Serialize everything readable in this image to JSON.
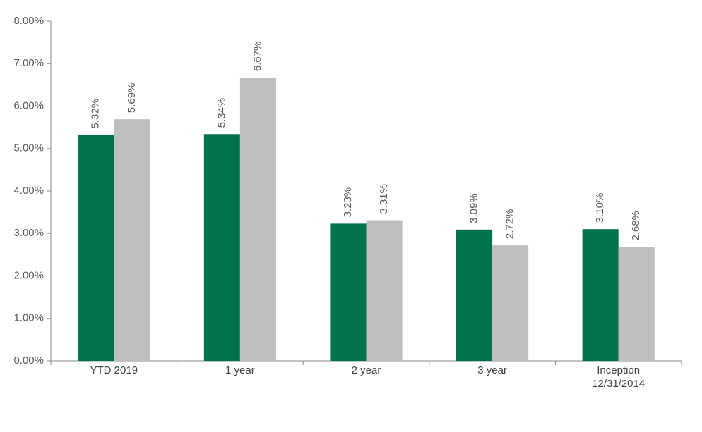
{
  "chart_data": {
    "type": "bar",
    "categories": [
      "YTD 2019",
      "1 year",
      "2 year",
      "3 year",
      "Inception\n12/31/2014"
    ],
    "series": [
      {
        "color": "#00734d",
        "values": [
          5.32,
          5.34,
          3.23,
          3.09,
          3.1
        ],
        "value_labels": [
          "5.32%",
          "5.34%",
          "3.23%",
          "3.09%",
          "3.10%"
        ]
      },
      {
        "color": "#bfbfbf",
        "values": [
          5.69,
          6.67,
          3.31,
          2.72,
          2.68
        ],
        "value_labels": [
          "5.69%",
          "6.67%",
          "3.31%",
          "2.72%",
          "2.68%"
        ]
      }
    ],
    "ylim": [
      0,
      8
    ],
    "yticks": [
      {
        "value": 0,
        "label": "0.00%"
      },
      {
        "value": 1,
        "label": "1.00%"
      },
      {
        "value": 2,
        "label": "2.00%"
      },
      {
        "value": 3,
        "label": "3.00%"
      },
      {
        "value": 4,
        "label": "4.00%"
      },
      {
        "value": 5,
        "label": "5.00%"
      },
      {
        "value": 6,
        "label": "6.00%"
      },
      {
        "value": 7,
        "label": "7.00%"
      },
      {
        "value": 8,
        "label": "8.00%"
      }
    ],
    "grid": false
  }
}
